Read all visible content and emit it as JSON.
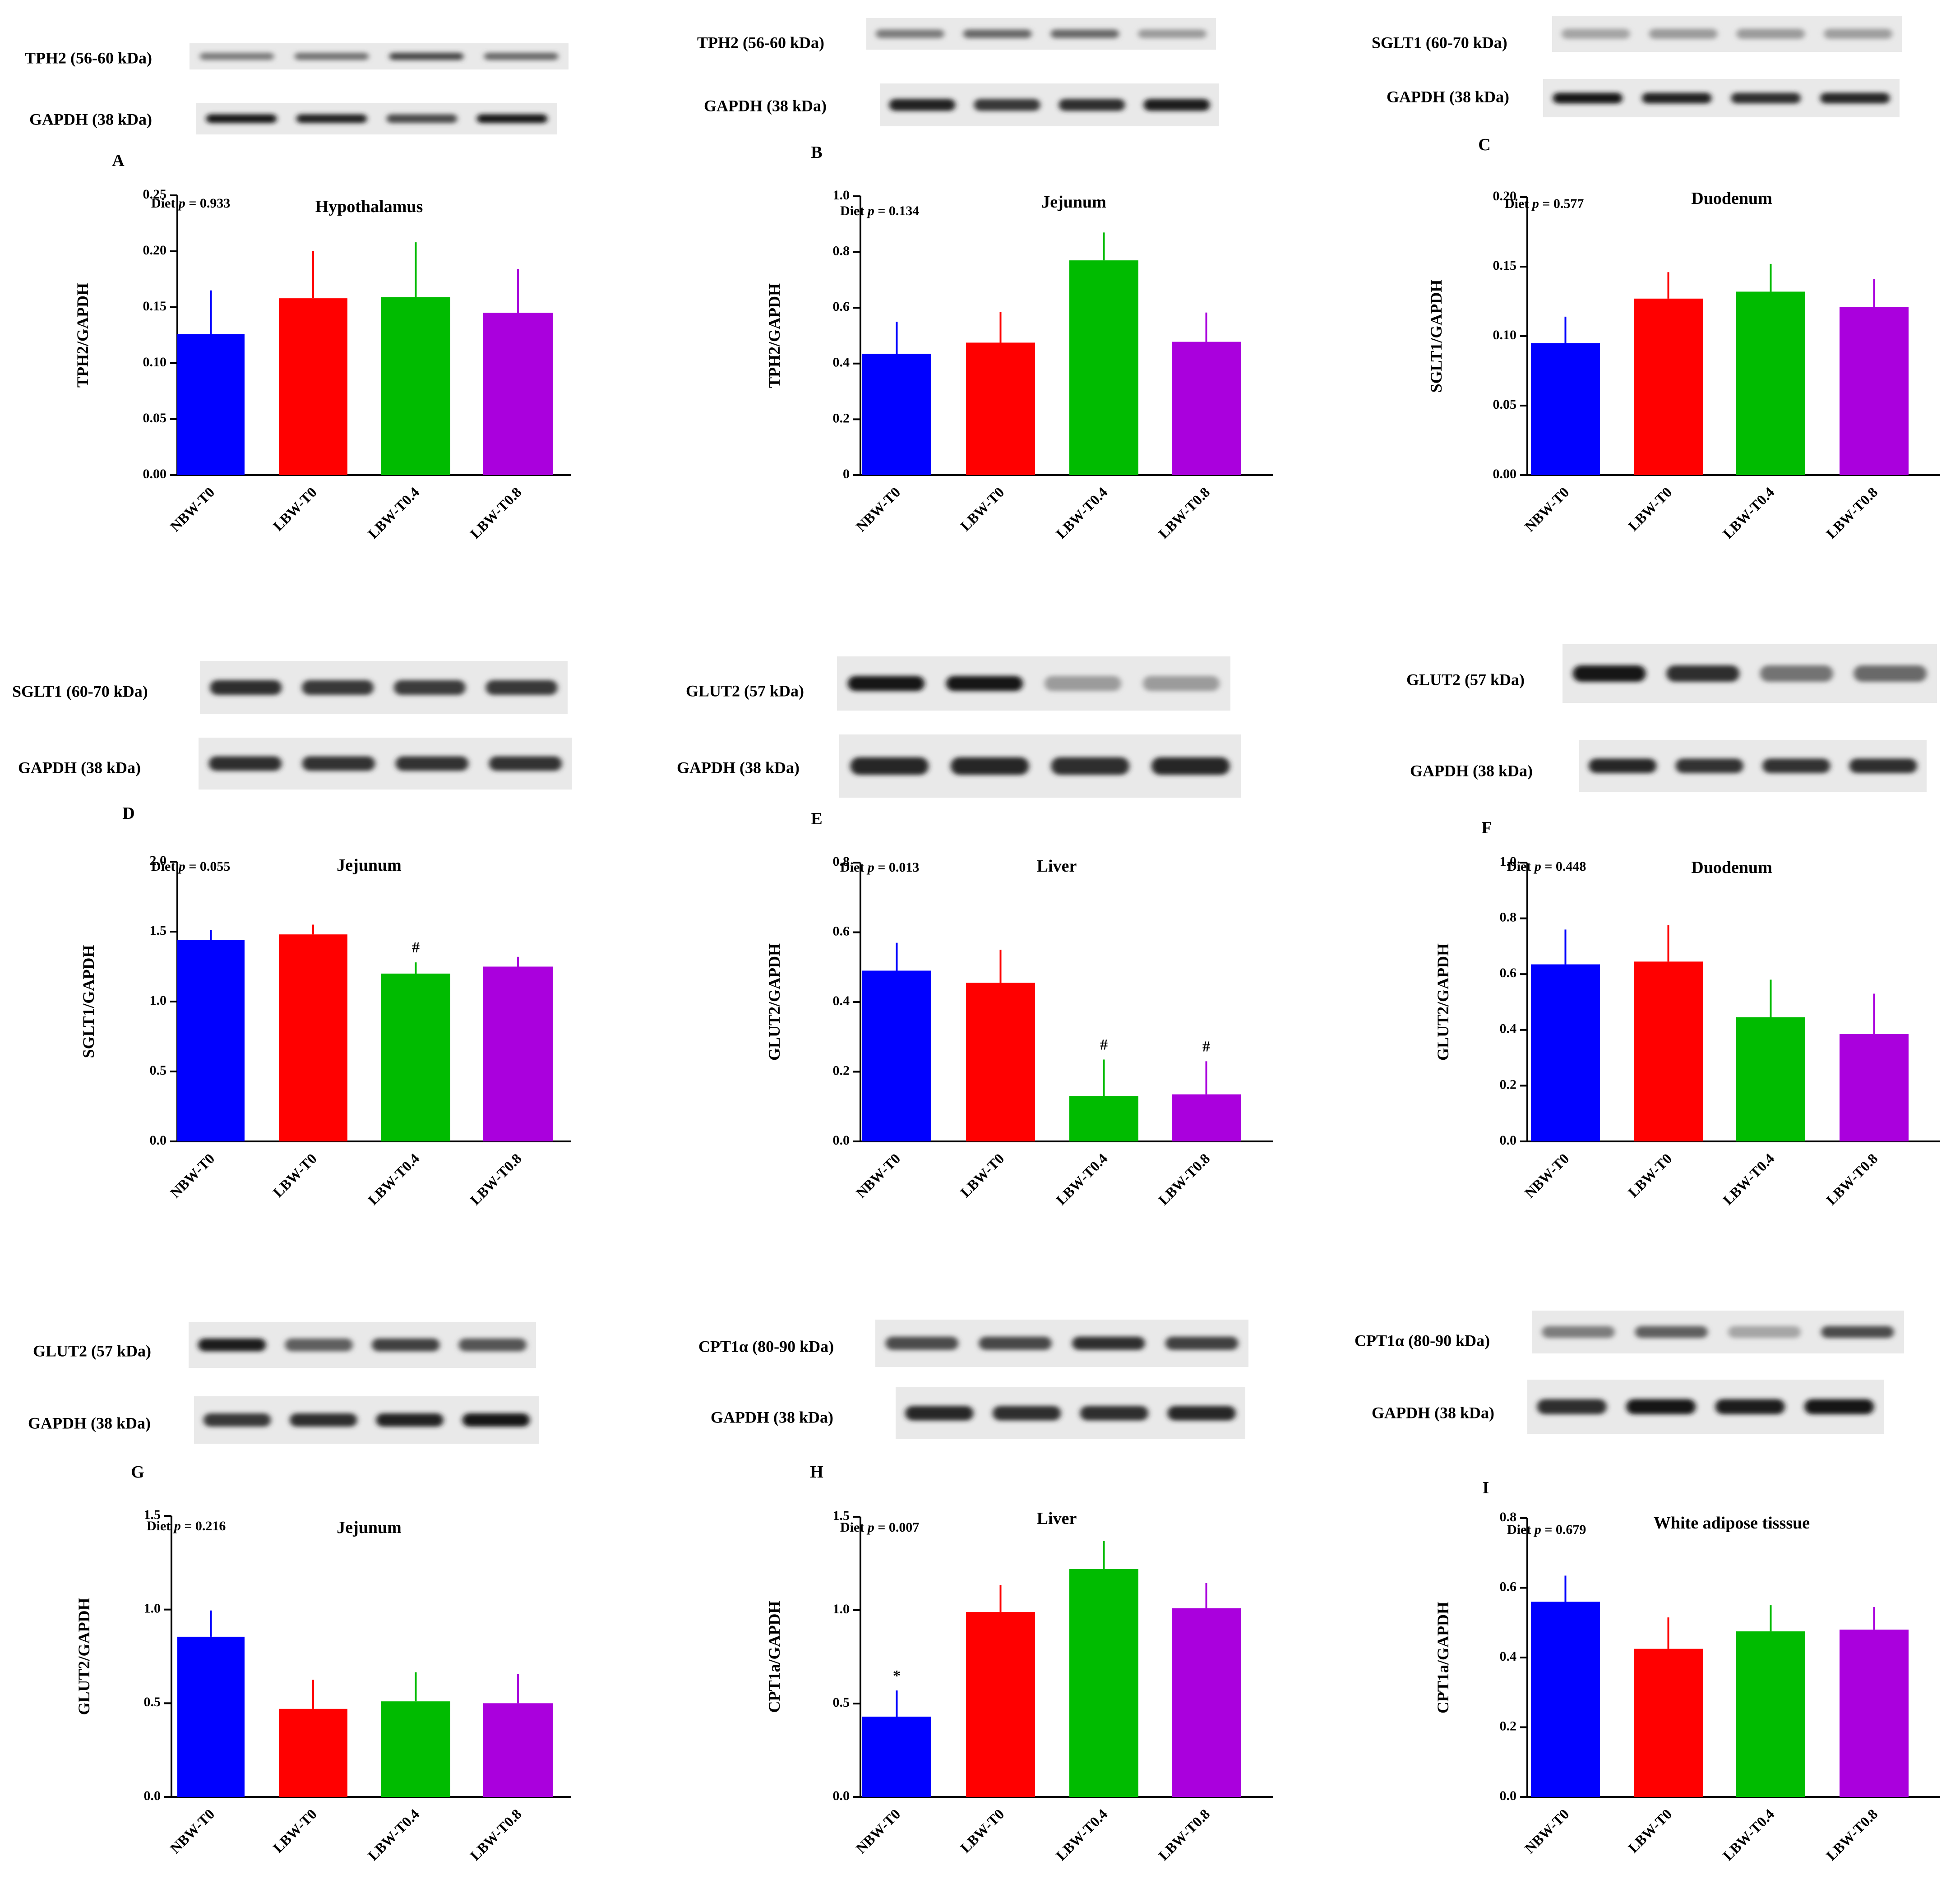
{
  "chart_data": [
    {
      "type": "bar",
      "panel": "A",
      "title": "Hypothalamus",
      "diet_prefix": "Diet ",
      "diet_p": "p",
      "diet_value": " = 0.933",
      "ylabel": "TPH2/GAPDH",
      "ylim": [
        0,
        0.25
      ],
      "yticks": [
        "0.00",
        "0.05",
        "0.10",
        "0.15",
        "0.20",
        "0.25"
      ],
      "categories": [
        "NBW-T0",
        "LBW-T0",
        "LBW-T0.4",
        "LBW-T0.8"
      ],
      "values": [
        0.126,
        0.158,
        0.159,
        0.145
      ],
      "errors": [
        0.039,
        0.042,
        0.049,
        0.039
      ],
      "annotations": [
        "",
        "",
        "",
        ""
      ],
      "colors": [
        "#0000ff",
        "#ff0000",
        "#00bb00",
        "#aa00dd"
      ],
      "blots": [
        {
          "label": "TPH2 (56-60 kDa)",
          "band_intensity": [
            0.45,
            0.5,
            0.72,
            0.55
          ]
        },
        {
          "label": "GAPDH (38 kDa)",
          "band_intensity": [
            0.95,
            0.9,
            0.7,
            0.95
          ]
        }
      ]
    },
    {
      "type": "bar",
      "panel": "B",
      "title": "Jejunum",
      "diet_prefix": "Diet ",
      "diet_p": "p",
      "diet_value": " = 0.134",
      "ylabel": "TPH2/GAPDH",
      "ylim": [
        0,
        1.0
      ],
      "yticks": [
        "0",
        "0.2",
        "0.4",
        "0.6",
        "0.8",
        "1.0"
      ],
      "categories": [
        "NBW-T0",
        "LBW-T0",
        "LBW-T0.4",
        "LBW-T0.8"
      ],
      "values": [
        0.435,
        0.475,
        0.77,
        0.478
      ],
      "errors": [
        0.115,
        0.11,
        0.1,
        0.105
      ],
      "annotations": [
        "",
        "",
        "",
        ""
      ],
      "colors": [
        "#0000ff",
        "#ff0000",
        "#00bb00",
        "#aa00dd"
      ],
      "blots": [
        {
          "label": "TPH2 (56-60 kDa)",
          "band_intensity": [
            0.45,
            0.55,
            0.55,
            0.3
          ]
        },
        {
          "label": "GAPDH (38 kDa)",
          "band_intensity": [
            0.9,
            0.8,
            0.85,
            0.92
          ]
        }
      ]
    },
    {
      "type": "bar",
      "panel": "C",
      "title": "Duodenum",
      "diet_prefix": "Diet ",
      "diet_p": "p",
      "diet_value": " = 0.577",
      "ylabel": "SGLT1/GAPDH",
      "ylim": [
        0,
        0.2
      ],
      "yticks": [
        "0.00",
        "0.05",
        "0.10",
        "0.15",
        "0.20"
      ],
      "categories": [
        "NBW-T0",
        "LBW-T0",
        "LBW-T0.4",
        "LBW-T0.8"
      ],
      "values": [
        0.095,
        0.127,
        0.132,
        0.121
      ],
      "errors": [
        0.019,
        0.019,
        0.02,
        0.02
      ],
      "annotations": [
        "",
        "",
        "",
        ""
      ],
      "colors": [
        "#0000ff",
        "#ff0000",
        "#00bb00",
        "#aa00dd"
      ],
      "blots": [
        {
          "label": "SGLT1 (60-70 kDa)",
          "band_intensity": [
            0.25,
            0.3,
            0.3,
            0.28
          ]
        },
        {
          "label": "GAPDH (38 kDa)",
          "band_intensity": [
            0.95,
            0.9,
            0.85,
            0.88
          ]
        }
      ]
    },
    {
      "type": "bar",
      "panel": "D",
      "title": "Jejunum",
      "diet_prefix": "Diet ",
      "diet_p": "p",
      "diet_value": " = 0.055",
      "ylabel": "SGLT1/GAPDH",
      "ylim": [
        0,
        2.0
      ],
      "yticks": [
        "0.0",
        "0.5",
        "1.0",
        "1.5",
        "2.0"
      ],
      "categories": [
        "NBW-T0",
        "LBW-T0",
        "LBW-T0.4",
        "LBW-T0.8"
      ],
      "values": [
        1.44,
        1.48,
        1.2,
        1.25
      ],
      "errors": [
        0.07,
        0.07,
        0.08,
        0.07
      ],
      "annotations": [
        "",
        "",
        "#",
        ""
      ],
      "colors": [
        "#0000ff",
        "#ff0000",
        "#00bb00",
        "#aa00dd"
      ],
      "blots": [
        {
          "label": "SGLT1 (60-70 kDa)",
          "band_intensity": [
            0.85,
            0.8,
            0.78,
            0.8
          ]
        },
        {
          "label": "GAPDH (38 kDa)",
          "band_intensity": [
            0.85,
            0.82,
            0.82,
            0.82
          ]
        }
      ]
    },
    {
      "type": "bar",
      "panel": "E",
      "title": "Liver",
      "diet_prefix": "Diet ",
      "diet_p": "p",
      "diet_value": " = 0.013",
      "ylabel": "GLUT2/GAPDH",
      "ylim": [
        0,
        0.8
      ],
      "yticks": [
        "0.0",
        "0.2",
        "0.4",
        "0.6",
        "0.8"
      ],
      "categories": [
        "NBW-T0",
        "LBW-T0",
        "LBW-T0.4",
        "LBW-T0.8"
      ],
      "values": [
        0.49,
        0.455,
        0.13,
        0.135
      ],
      "errors": [
        0.08,
        0.095,
        0.105,
        0.095
      ],
      "annotations": [
        "",
        "",
        "#",
        "#"
      ],
      "colors": [
        "#0000ff",
        "#ff0000",
        "#00bb00",
        "#aa00dd"
      ],
      "blots": [
        {
          "label": "GLUT2 (57 kDa)",
          "band_intensity": [
            0.98,
            0.95,
            0.3,
            0.3
          ]
        },
        {
          "label": "GAPDH (38 kDa)",
          "band_intensity": [
            0.88,
            0.88,
            0.85,
            0.88
          ]
        }
      ]
    },
    {
      "type": "bar",
      "panel": "F",
      "title": "Duodenum",
      "diet_prefix": "Diet ",
      "diet_p": "p",
      "diet_value": " = 0.448",
      "ylabel": "GLUT2/GAPDH",
      "ylim": [
        0,
        1.0
      ],
      "yticks": [
        "0.0",
        "0.2",
        "0.4",
        "0.6",
        "0.8",
        "1.0"
      ],
      "categories": [
        "NBW-T0",
        "LBW-T0",
        "LBW-T0.4",
        "LBW-T0.8"
      ],
      "values": [
        0.635,
        0.645,
        0.445,
        0.385
      ],
      "errors": [
        0.125,
        0.13,
        0.135,
        0.145
      ],
      "annotations": [
        "",
        "",
        "",
        ""
      ],
      "colors": [
        "#0000ff",
        "#ff0000",
        "#00bb00",
        "#aa00dd"
      ],
      "blots": [
        {
          "label": "GLUT2 (57 kDa)",
          "band_intensity": [
            0.95,
            0.85,
            0.5,
            0.55
          ]
        },
        {
          "label": "GAPDH (38 kDa)",
          "band_intensity": [
            0.88,
            0.82,
            0.82,
            0.85
          ]
        }
      ]
    },
    {
      "type": "bar",
      "panel": "G",
      "title": "Jejunum",
      "diet_prefix": "Diet ",
      "diet_p": "p",
      "diet_value": " = 0.216",
      "ylabel": "GLUT2/GAPDH",
      "ylim": [
        0,
        1.5
      ],
      "yticks": [
        "0.0",
        "0.5",
        "1.0",
        "1.5"
      ],
      "categories": [
        "NBW-T0",
        "LBW-T0",
        "LBW-T0.4",
        "LBW-T0.8"
      ],
      "values": [
        0.855,
        0.47,
        0.51,
        0.5
      ],
      "errors": [
        0.14,
        0.155,
        0.155,
        0.155
      ],
      "annotations": [
        "",
        "",
        "",
        ""
      ],
      "colors": [
        "#0000ff",
        "#ff0000",
        "#00bb00",
        "#aa00dd"
      ],
      "blots": [
        {
          "label": "GLUT2 (57 kDa)",
          "band_intensity": [
            0.92,
            0.6,
            0.75,
            0.65
          ]
        },
        {
          "label": "GAPDH (38 kDa)",
          "band_intensity": [
            0.8,
            0.85,
            0.9,
            0.95
          ]
        }
      ]
    },
    {
      "type": "bar",
      "panel": "H",
      "title": "Liver",
      "diet_prefix": "Diet ",
      "diet_p": "p",
      "diet_value": " = 0.007",
      "ylabel": "CPT1a/GAPDH",
      "ylim": [
        0,
        1.5
      ],
      "yticks": [
        "0.0",
        "0.5",
        "1.0",
        "1.5"
      ],
      "categories": [
        "NBW-T0",
        "LBW-T0",
        "LBW-T0.4",
        "LBW-T0.8"
      ],
      "values": [
        0.43,
        0.99,
        1.22,
        1.01
      ],
      "errors": [
        0.14,
        0.145,
        0.15,
        0.135
      ],
      "annotations": [
        "*",
        "",
        "",
        ""
      ],
      "colors": [
        "#0000ff",
        "#ff0000",
        "#00bb00",
        "#aa00dd"
      ],
      "blots": [
        {
          "label": "CPT1α (80-90 kDa)",
          "band_intensity": [
            0.7,
            0.72,
            0.85,
            0.75
          ]
        },
        {
          "label": "GAPDH (38 kDa)",
          "band_intensity": [
            0.88,
            0.85,
            0.85,
            0.88
          ]
        }
      ]
    },
    {
      "type": "bar",
      "panel": "I",
      "title": "White adipose tisssue",
      "diet_prefix": "Diet ",
      "diet_p": "p",
      "diet_value": " = 0.679",
      "ylabel": "CPT1a/GAPDH",
      "ylim": [
        0,
        0.8
      ],
      "yticks": [
        "0.0",
        "0.2",
        "0.4",
        "0.6",
        "0.8"
      ],
      "categories": [
        "NBW-T0",
        "LBW-T0",
        "LBW-T0.4",
        "LBW-T0.8"
      ],
      "values": [
        0.56,
        0.425,
        0.475,
        0.48
      ],
      "errors": [
        0.075,
        0.09,
        0.075,
        0.065
      ],
      "annotations": [
        "",
        "",
        "",
        ""
      ],
      "colors": [
        "#0000ff",
        "#ff0000",
        "#00bb00",
        "#aa00dd"
      ],
      "blots": [
        {
          "label": "CPT1α (80-90 kDa)",
          "band_intensity": [
            0.45,
            0.6,
            0.25,
            0.7
          ]
        },
        {
          "label": "GAPDH (38 kDa)",
          "band_intensity": [
            0.85,
            0.95,
            0.92,
            0.95
          ]
        }
      ]
    }
  ]
}
